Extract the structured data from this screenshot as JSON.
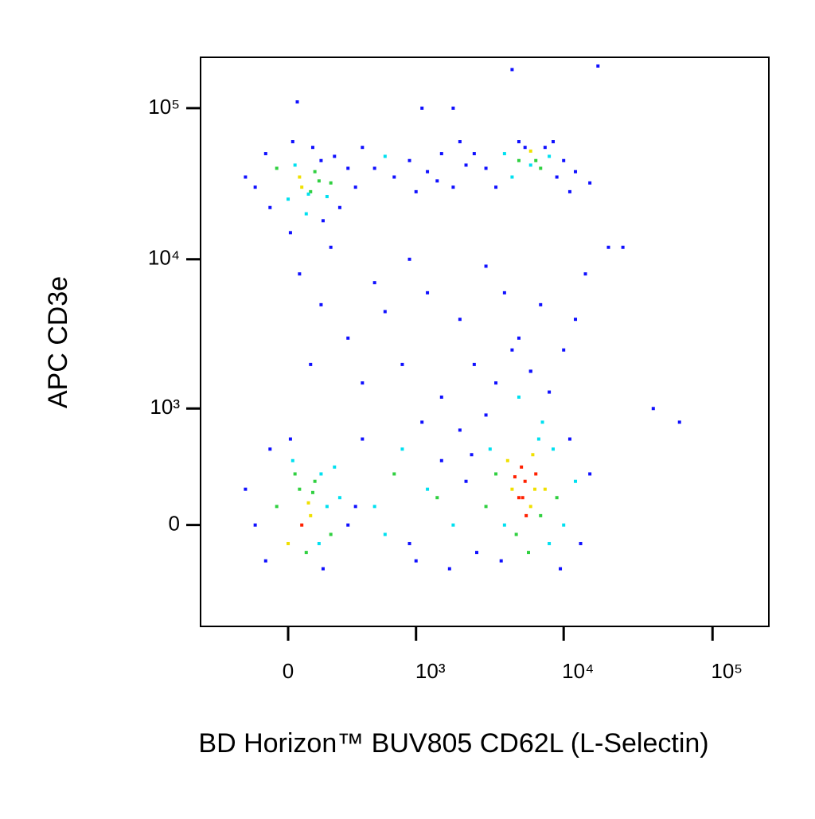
{
  "chart_data": {
    "type": "scatter",
    "x_label": "BD Horizon™ BUV805 CD62L (L-Selectin)",
    "y_label": "APC CD3e",
    "xscale": "biexponential",
    "yscale": "biexponential",
    "xlim": [
      -510,
      239000
    ],
    "ylim": [
      -780,
      217000
    ],
    "xticks": [
      0,
      {
        "value": 1000,
        "label": "10³"
      },
      {
        "value": 10000,
        "label": "10⁴"
      },
      {
        "value": 100000,
        "label": "10⁵"
      }
    ],
    "yticks": [
      0,
      {
        "value": 1000,
        "label": "10³"
      },
      {
        "value": 10000,
        "label": "10⁴"
      },
      {
        "value": 100000,
        "label": "10⁵"
      }
    ],
    "x": [
      -150,
      -50,
      0,
      50,
      100,
      150,
      200,
      250,
      -100,
      20,
      80,
      120,
      180,
      300,
      -200,
      60,
      140,
      90,
      30,
      220,
      -80,
      160,
      350,
      10,
      110,
      3000,
      4000,
      5000,
      6000,
      7000,
      8000,
      9000,
      10000,
      12000,
      5500,
      4500,
      6500,
      3500,
      7500,
      11000,
      15000,
      5000,
      6000,
      2500,
      8500,
      500,
      700,
      900,
      1200,
      1500,
      1800,
      2200,
      400,
      1000,
      2000,
      600,
      1400,
      50,
      150,
      300,
      500,
      800,
      1200,
      2000,
      3000,
      5000,
      7000,
      10000,
      14000,
      100,
      400,
      1500,
      2500,
      6000,
      8000,
      200,
      900,
      4000,
      12000,
      600,
      3500,
      20000,
      -150,
      -50,
      0,
      50,
      100,
      150,
      200,
      250,
      -100,
      20,
      80,
      120,
      180,
      300,
      -200,
      60,
      140,
      90,
      30,
      220,
      -80,
      160,
      350,
      10,
      110,
      500,
      700,
      900,
      1200,
      1500,
      1800,
      2200,
      400,
      1000,
      2000,
      600,
      1400,
      2600,
      800,
      1100,
      1700,
      2400,
      3000,
      3000,
      3500,
      4000,
      4500,
      5000,
      5500,
      6000,
      6500,
      7000,
      7500,
      8000,
      9000,
      10000,
      12000,
      4200,
      5200,
      6200,
      4800,
      5800,
      6800,
      3800,
      7200,
      5000,
      6000,
      4500,
      8500,
      11000,
      13000,
      3200,
      5600,
      6400,
      5300,
      4700,
      9500,
      15000,
      4500,
      17000,
      1100,
      1800,
      40,
      40000,
      60000,
      25000
    ],
    "y": [
      30000,
      40000,
      25000,
      35000,
      28000,
      45000,
      32000,
      22000,
      50000,
      60000,
      20000,
      38000,
      26000,
      40000,
      35000,
      30000,
      33000,
      27000,
      42000,
      48000,
      22000,
      18000,
      30000,
      15000,
      55000,
      40000,
      50000,
      45000,
      52000,
      40000,
      48000,
      35000,
      45000,
      38000,
      55000,
      35000,
      45000,
      30000,
      55000,
      28000,
      32000,
      60000,
      42000,
      50000,
      60000,
      40000,
      35000,
      45000,
      38000,
      50000,
      30000,
      42000,
      55000,
      28000,
      60000,
      48000,
      33000,
      8000,
      5000,
      3000,
      7000,
      2000,
      6000,
      4000,
      9000,
      3000,
      5000,
      2500,
      8000,
      2000,
      1500,
      1200,
      2000,
      1800,
      1300,
      12000,
      10000,
      6000,
      4000,
      4500,
      1500,
      12000,
      0,
      100,
      -100,
      200,
      50,
      300,
      -50,
      150,
      -200,
      400,
      -150,
      250,
      100,
      0,
      200,
      0,
      -100,
      120,
      300,
      350,
      500,
      -250,
      100,
      600,
      180,
      100,
      300,
      -100,
      200,
      400,
      0,
      250,
      600,
      -200,
      700,
      -50,
      150,
      -150,
      500,
      800,
      -250,
      450,
      900,
      100,
      300,
      0,
      200,
      150,
      250,
      100,
      300,
      50,
      200,
      -100,
      150,
      0,
      250,
      400,
      350,
      450,
      -50,
      -150,
      600,
      -200,
      800,
      1200,
      1800,
      2500,
      500,
      600,
      -100,
      500,
      50,
      200,
      150,
      280,
      -250,
      300,
      180000,
      190000,
      100000,
      100000,
      110000,
      1000,
      800,
      12000
    ],
    "colors": [
      "#1010ff",
      "#30d040",
      "#00e0f0",
      "#f0e000",
      "#30d040",
      "#1010ff",
      "#30d040",
      "#1010ff",
      "#1010ff",
      "#1010ff",
      "#00e0f0",
      "#30d040",
      "#00e0f0",
      "#1010ff",
      "#1010ff",
      "#f0e000",
      "#30d040",
      "#00e0f0",
      "#00e0f0",
      "#1010ff",
      "#1010ff",
      "#1010ff",
      "#1010ff",
      "#1010ff",
      "#1010ff",
      "#1010ff",
      "#00e0f0",
      "#30d040",
      "#f0e000",
      "#30d040",
      "#00e0f0",
      "#1010ff",
      "#1010ff",
      "#1010ff",
      "#1010ff",
      "#00e0f0",
      "#30d040",
      "#1010ff",
      "#1010ff",
      "#1010ff",
      "#1010ff",
      "#1010ff",
      "#00e0f0",
      "#1010ff",
      "#1010ff",
      "#1010ff",
      "#1010ff",
      "#1010ff",
      "#1010ff",
      "#1010ff",
      "#1010ff",
      "#1010ff",
      "#1010ff",
      "#1010ff",
      "#1010ff",
      "#00e0f0",
      "#1010ff",
      "#1010ff",
      "#1010ff",
      "#1010ff",
      "#1010ff",
      "#1010ff",
      "#1010ff",
      "#1010ff",
      "#1010ff",
      "#1010ff",
      "#1010ff",
      "#1010ff",
      "#1010ff",
      "#1010ff",
      "#1010ff",
      "#1010ff",
      "#1010ff",
      "#1010ff",
      "#1010ff",
      "#1010ff",
      "#1010ff",
      "#1010ff",
      "#1010ff",
      "#1010ff",
      "#1010ff",
      "#1010ff",
      "#1010ff",
      "#30d040",
      "#f0e000",
      "#30d040",
      "#f0e000",
      "#00e0f0",
      "#30d040",
      "#00e0f0",
      "#1010ff",
      "#00e0f0",
      "#30d040",
      "#30d040",
      "#00e0f0",
      "#1010ff",
      "#1010ff",
      "#ff2000",
      "#00e0f0",
      "#f0e000",
      "#30d040",
      "#00e0f0",
      "#1010ff",
      "#1010ff",
      "#1010ff",
      "#1010ff",
      "#30d040",
      "#00e0f0",
      "#30d040",
      "#1010ff",
      "#00e0f0",
      "#1010ff",
      "#00e0f0",
      "#1010ff",
      "#1010ff",
      "#1010ff",
      "#1010ff",
      "#00e0f0",
      "#30d040",
      "#1010ff",
      "#00e0f0",
      "#1010ff",
      "#1010ff",
      "#1010ff",
      "#1010ff",
      "#30d040",
      "#30d040",
      "#00e0f0",
      "#f0e000",
      "#ff2000",
      "#ff2000",
      "#f0e000",
      "#ff2000",
      "#30d040",
      "#f0e000",
      "#00e0f0",
      "#30d040",
      "#00e0f0",
      "#00e0f0",
      "#f0e000",
      "#ff2000",
      "#f0e000",
      "#30d040",
      "#30d040",
      "#00e0f0",
      "#1010ff",
      "#00e0f0",
      "#00e0f0",
      "#1010ff",
      "#1010ff",
      "#00e0f0",
      "#1010ff",
      "#1010ff",
      "#00e0f0",
      "#ff2000",
      "#f0e000",
      "#ff2000",
      "#ff2000",
      "#1010ff",
      "#1010ff",
      "#1010ff",
      "#1010ff",
      "#1010ff",
      "#1010ff",
      "#1010ff",
      "#1010ff",
      "#1010ff",
      "#1010ff"
    ]
  }
}
